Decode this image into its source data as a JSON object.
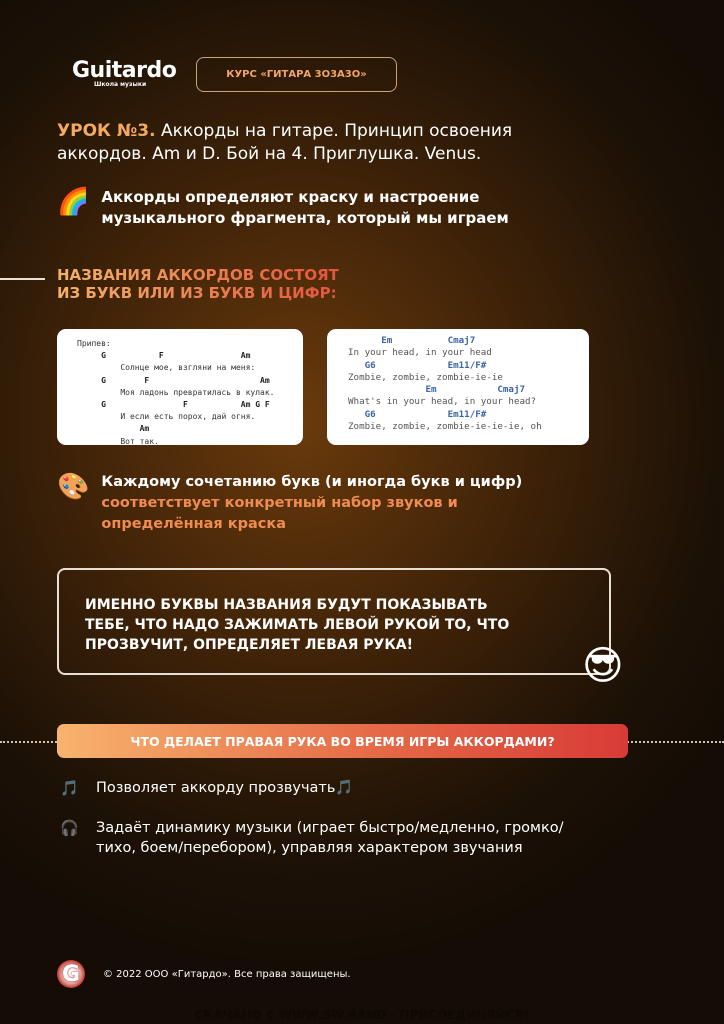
{
  "header": {
    "logo_text": "Guitardo",
    "logo_sub": "Школа музыки",
    "course": "КУРС «ГИТАРА 3О3А3О»"
  },
  "title": {
    "highlight": "УРОК №3.",
    "rest": " Аккорды на гитаре. Принцип освоения аккордов. Am и D. Бой на 4. Приглушка. Venus."
  },
  "intro": {
    "icon": "rainbow-icon",
    "line1": "Аккорды определяют краску и настроение",
    "line2": "музыкального фрагмента, который мы играем"
  },
  "section_heading": {
    "line1": "НАЗВАНИЯ АККОРДОВ СОСТОЯТ",
    "line2": "ИЗ БУКВ ИЛИ ИЗ БУКВ И ЦИФР:"
  },
  "card_left": [
    {
      "t": "l",
      "s": "Припев:"
    },
    {
      "t": "c",
      "s": "     G           F                Am"
    },
    {
      "t": "l",
      "s": "         Солнце мое, взгляни на меня:"
    },
    {
      "t": "c",
      "s": "     G        F                       Am"
    },
    {
      "t": "l",
      "s": "         Моя ладонь превратилась в кулак."
    },
    {
      "t": "c",
      "s": "     G                F           Am G F"
    },
    {
      "t": "l",
      "s": "         И если есть порох, дай огня."
    },
    {
      "t": "c",
      "s": "             Am"
    },
    {
      "t": "l",
      "s": "         Вот так."
    }
  ],
  "card_right": [
    {
      "t": "c",
      "s": "      Em          Cmaj7"
    },
    {
      "t": "l",
      "s": "In your head, in your head"
    },
    {
      "t": "c",
      "s": "   G6             Em11/F#"
    },
    {
      "t": "l",
      "s": "Zombie, zombie, zombie-ie-ie"
    },
    {
      "t": "c",
      "s": "              Em           Cmaj7"
    },
    {
      "t": "l",
      "s": "What's in your head, in your head?"
    },
    {
      "t": "c",
      "s": "   G6             Em11/F#"
    },
    {
      "t": "l",
      "s": "Zombie, zombie, zombie-ie-ie-ie, oh"
    }
  ],
  "palette": {
    "icon": "palette-icon",
    "line1": "Каждому сочетанию букв (и иногда букв и цифр)",
    "line2a": "соответствует ",
    "line2b": "конкретный набор звуков и",
    "line3": "определённая краска"
  },
  "callout": {
    "line1": "ИМЕННО БУКВЫ НАЗВАНИЯ БУДУТ ПОКАЗЫВАТЬ",
    "line2": "ТЕБЕ, ЧТО НАДО ЗАЖИМАТЬ ЛЕВОЙ РУКОЙ ТО, ЧТО",
    "line3": "ПРОЗВУЧИТ, ОПРЕДЕЛЯЕТ ЛЕВАЯ РУКА!",
    "emoji": "sunglasses-emoji"
  },
  "banner": "ЧТО ДЕЛАЕТ ПРАВАЯ РУКА ВО ВРЕМЯ ИГРЫ АККОРДАМИ?",
  "items": [
    {
      "icon": "music-note-icon",
      "line1": "Позволяет аккорду прозвучать🎵",
      "line2": ""
    },
    {
      "icon": "headphones-icon",
      "line1": "Задаёт динамику музыки (играет быстро/медленно, громко/",
      "line2": "тихо, боем/перебором), управляя характером звучания"
    }
  ],
  "footer": {
    "logo": "G",
    "copyright": "© 2022 ООО «Гитардо». Все права защищены."
  },
  "watermark": "СКАЧАНО С WWW.SW.BAND - ПРИСОЕДИНЯЙСЯ!"
}
